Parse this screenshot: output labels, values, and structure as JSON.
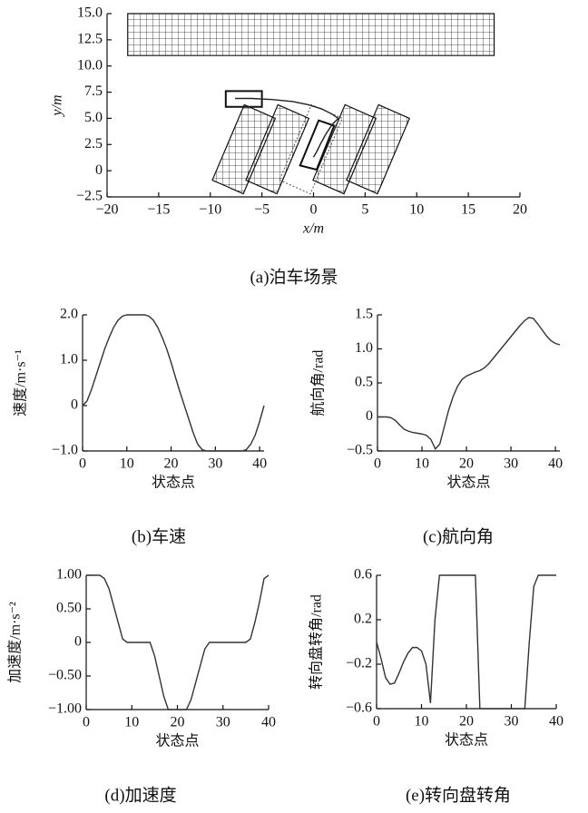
{
  "chart_data": [
    {
      "type": "line",
      "title": "(a)泊车场景",
      "xlabel": "x/m",
      "ylabel": "y/m",
      "color": "#222",
      "x": [
        -7.6,
        -6,
        -4,
        -2,
        -0.5,
        0.8,
        1.8,
        2.4,
        1.8,
        1.2,
        0.7,
        0.3,
        0
      ],
      "values": [
        6.9,
        6.9,
        6.8,
        6.6,
        6.3,
        5.9,
        5.4,
        5.0,
        4.4,
        3.5,
        2.6,
        1.8,
        1.3
      ],
      "obstacles": [
        [
          [
            -18,
            11
          ],
          [
            17.5,
            11
          ],
          [
            17.5,
            15
          ],
          [
            -18,
            15
          ]
        ],
        [
          [
            -9.8,
            -0.9
          ],
          [
            -6.8,
            -2.2
          ],
          [
            -3.7,
            5.0
          ],
          [
            -6.7,
            6.3
          ]
        ],
        [
          [
            -6.55,
            -0.9
          ],
          [
            -3.55,
            -2.2
          ],
          [
            -0.45,
            5.0
          ],
          [
            -3.45,
            6.3
          ]
        ],
        [
          [
            -0.05,
            -0.9
          ],
          [
            2.95,
            -2.2
          ],
          [
            6.05,
            5.0
          ],
          [
            3.05,
            6.3
          ]
        ],
        [
          [
            3.2,
            -0.9
          ],
          [
            6.2,
            -2.2
          ],
          [
            9.3,
            5.0
          ],
          [
            6.3,
            6.3
          ]
        ]
      ],
      "target_slot": [
        [
          -3.3,
          -0.9
        ],
        [
          -0.3,
          -2.2
        ],
        [
          2.8,
          5.0
        ],
        [
          -0.2,
          6.3
        ]
      ],
      "vehicle_start": [
        [
          -8.5,
          6.1
        ],
        [
          -5,
          6.1
        ],
        [
          -5,
          7.6
        ],
        [
          -8.5,
          7.6
        ]
      ],
      "vehicle_end": [
        [
          -1.3,
          0.5
        ],
        [
          0.3,
          0.1
        ],
        [
          2.0,
          4.3
        ],
        [
          0.5,
          4.8
        ]
      ],
      "xlim": [
        -20,
        20
      ],
      "xticks": [
        {
          "value": -20,
          "label": "−20"
        },
        {
          "value": -15,
          "label": "−15"
        },
        {
          "value": -10,
          "label": "−10"
        },
        {
          "value": -5,
          "label": "−5"
        },
        0,
        5,
        10,
        15,
        20
      ],
      "ylim": [
        -2.5,
        15
      ],
      "yticks": [
        {
          "value": -2.5,
          "label": "−2.5"
        },
        0,
        {
          "value": 2.5,
          "label": "2.5"
        },
        {
          "value": 5,
          "label": "5.0"
        },
        {
          "value": 7.5,
          "label": "7.5"
        },
        {
          "value": 10,
          "label": "10.0"
        },
        {
          "value": 12.5,
          "label": "12.5"
        },
        {
          "value": 15,
          "label": "15.0"
        }
      ]
    },
    {
      "type": "line",
      "title": "(b)车速",
      "xlabel": "状态点",
      "ylabel": "速度/m·s⁻¹",
      "color": "#333",
      "x": [
        0,
        1,
        2,
        3,
        4,
        5,
        6,
        7,
        8,
        9,
        10,
        11,
        12,
        13,
        14,
        15,
        16,
        17,
        18,
        19,
        20,
        21,
        22,
        23,
        24,
        25,
        26,
        27,
        28,
        29,
        30,
        31,
        32,
        33,
        34,
        35,
        36,
        37,
        38,
        39,
        40,
        41
      ],
      "values": [
        0,
        0.1,
        0.35,
        0.65,
        0.95,
        1.25,
        1.5,
        1.72,
        1.88,
        1.97,
        2,
        2,
        2,
        2,
        2,
        1.97,
        1.88,
        1.72,
        1.5,
        1.25,
        0.95,
        0.62,
        0.3,
        0,
        -0.3,
        -0.6,
        -0.85,
        -0.97,
        -1,
        -1,
        -1,
        -1,
        -1,
        -1,
        -1,
        -1,
        -1,
        -0.97,
        -0.85,
        -0.65,
        -0.35,
        0
      ],
      "xlim": [
        0,
        41
      ],
      "xticks": [
        0,
        10,
        20,
        30,
        40
      ],
      "ylim": [
        -1,
        2
      ],
      "yticks": [
        {
          "value": -1,
          "label": "−1.0"
        },
        0,
        {
          "value": 1,
          "label": "1.0"
        },
        {
          "value": 2,
          "label": "2.0"
        }
      ]
    },
    {
      "type": "line",
      "title": "(c)航向角",
      "xlabel": "状态点",
      "ylabel": "航向角/rad",
      "color": "#333",
      "x": [
        0,
        1,
        2,
        3,
        4,
        5,
        6,
        7,
        8,
        9,
        10,
        11,
        12,
        13,
        14,
        15,
        16,
        17,
        18,
        19,
        20,
        21,
        22,
        23,
        24,
        25,
        26,
        27,
        28,
        29,
        30,
        31,
        32,
        33,
        34,
        35,
        36,
        37,
        38,
        39,
        40,
        41
      ],
      "values": [
        0,
        0,
        0,
        -0.01,
        -0.05,
        -0.12,
        -0.18,
        -0.21,
        -0.23,
        -0.24,
        -0.25,
        -0.27,
        -0.33,
        -0.47,
        -0.4,
        -0.15,
        0.1,
        0.3,
        0.45,
        0.55,
        0.6,
        0.63,
        0.66,
        0.68,
        0.72,
        0.78,
        0.86,
        0.94,
        1.02,
        1.1,
        1.18,
        1.26,
        1.34,
        1.41,
        1.46,
        1.45,
        1.37,
        1.28,
        1.19,
        1.12,
        1.08,
        1.06
      ],
      "xlim": [
        0,
        41
      ],
      "xticks": [
        0,
        10,
        20,
        30,
        40
      ],
      "ylim": [
        -0.5,
        1.5
      ],
      "yticks": [
        {
          "value": -0.5,
          "label": "−0.5"
        },
        0,
        {
          "value": 0.5,
          "label": "0.5"
        },
        {
          "value": 1,
          "label": "1.0"
        },
        1.5
      ]
    },
    {
      "type": "line",
      "title": "(d)加速度",
      "xlabel": "状态点",
      "ylabel": "加速度/m·s⁻²",
      "color": "#333",
      "x": [
        0,
        1,
        2,
        3,
        4,
        5,
        6,
        7,
        8,
        9,
        10,
        11,
        12,
        13,
        14,
        15,
        16,
        17,
        18,
        19,
        20,
        21,
        22,
        23,
        24,
        25,
        26,
        27,
        28,
        29,
        30,
        31,
        32,
        33,
        34,
        35,
        36,
        37,
        38,
        39,
        40
      ],
      "values": [
        1,
        1,
        1,
        1,
        0.95,
        0.8,
        0.55,
        0.3,
        0.05,
        0,
        0,
        0,
        0,
        0,
        0,
        -0.2,
        -0.5,
        -0.8,
        -1,
        -1,
        -1,
        -1,
        -1,
        -0.85,
        -0.6,
        -0.35,
        -0.1,
        0,
        0,
        0,
        0,
        0,
        0,
        0,
        0,
        0,
        0.05,
        0.3,
        0.6,
        0.95,
        1
      ],
      "xlim": [
        0,
        40
      ],
      "xticks": [
        0,
        10,
        20,
        30,
        40
      ],
      "ylim": [
        -1,
        1
      ],
      "yticks": [
        {
          "value": -1,
          "label": "−1.00"
        },
        {
          "value": -0.5,
          "label": "−0.50"
        },
        0,
        {
          "value": 0.5,
          "label": "0.50"
        },
        {
          "value": 1,
          "label": "1.00"
        }
      ]
    },
    {
      "type": "line",
      "title": "(e)转向盘转角",
      "xlabel": "状态点",
      "ylabel": "转向盘转角/rad",
      "color": "#333",
      "x": [
        0,
        1,
        2,
        3,
        4,
        5,
        6,
        7,
        8,
        9,
        10,
        11,
        12,
        13,
        14,
        15,
        16,
        17,
        18,
        19,
        20,
        21,
        22,
        23,
        24,
        25,
        26,
        27,
        28,
        29,
        30,
        31,
        32,
        33,
        34,
        35,
        36,
        37,
        38,
        39,
        40
      ],
      "values": [
        0,
        -0.15,
        -0.32,
        -0.38,
        -0.37,
        -0.28,
        -0.18,
        -0.1,
        -0.05,
        -0.05,
        -0.08,
        -0.2,
        -0.55,
        0.2,
        0.6,
        0.6,
        0.6,
        0.6,
        0.6,
        0.6,
        0.6,
        0.6,
        0.6,
        -0.6,
        -0.6,
        -0.6,
        -0.6,
        -0.6,
        -0.6,
        -0.6,
        -0.6,
        -0.6,
        -0.6,
        -0.6,
        0,
        0.5,
        0.6,
        0.6,
        0.6,
        0.6,
        0.6
      ],
      "xlim": [
        0,
        40
      ],
      "xticks": [
        0,
        10,
        20,
        30,
        40
      ],
      "ylim": [
        -0.6,
        0.6
      ],
      "yticks": [
        {
          "value": -0.6,
          "label": "−0.6"
        },
        {
          "value": -0.2,
          "label": "−0.2"
        },
        0.2,
        0.6
      ]
    }
  ]
}
